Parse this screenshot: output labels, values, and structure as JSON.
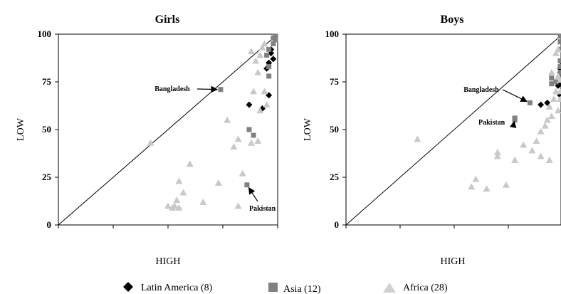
{
  "chart_data": [
    {
      "type": "scatter",
      "title": "Girls",
      "xlabel": "HIGH",
      "ylabel": "LOW",
      "xlim": [
        0,
        100
      ],
      "ylim": [
        0,
        100
      ],
      "yticks": [
        "0",
        "25",
        "50",
        "75",
        "100"
      ],
      "diagonal": true,
      "series": [
        {
          "name": "Latin America (8)",
          "marker": "diamond",
          "color": "#000000",
          "points": [
            [
              97,
              90
            ],
            [
              97,
              92
            ],
            [
              98,
              87
            ],
            [
              95,
              82
            ],
            [
              96,
              85
            ],
            [
              96,
              68
            ],
            [
              87,
              63
            ],
            [
              93,
              61
            ]
          ]
        },
        {
          "name": "Asia (12)",
          "marker": "square",
          "color": "#808080",
          "points": [
            [
              99,
              99
            ],
            [
              98,
              98
            ],
            [
              99,
              97
            ],
            [
              98,
              95
            ],
            [
              96,
              92
            ],
            [
              95,
              89
            ],
            [
              96,
              83
            ],
            [
              96,
              78
            ],
            [
              74,
              71
            ],
            [
              87,
              50
            ],
            [
              89,
              47
            ],
            [
              86,
              21
            ]
          ]
        },
        {
          "name": "Africa (28)",
          "marker": "triangle",
          "color": "#c8c8c8",
          "points": [
            [
              42,
              43
            ],
            [
              88,
              91
            ],
            [
              92,
              89
            ],
            [
              90,
              86
            ],
            [
              91,
              80
            ],
            [
              89,
              70
            ],
            [
              94,
              70
            ],
            [
              92,
              60
            ],
            [
              95,
              63
            ],
            [
              77,
              55
            ],
            [
              82,
              45
            ],
            [
              80,
              41
            ],
            [
              91,
              44
            ],
            [
              88,
              43
            ],
            [
              84,
              27
            ],
            [
              73,
              22
            ],
            [
              55,
              23
            ],
            [
              57,
              17
            ],
            [
              60,
              32
            ],
            [
              50,
              10
            ],
            [
              53,
              10
            ],
            [
              54,
              13
            ],
            [
              52,
              9
            ],
            [
              55,
              9
            ],
            [
              66,
              12
            ],
            [
              82,
              10
            ],
            [
              94,
              95
            ],
            [
              93,
              93
            ]
          ]
        }
      ],
      "annotations": [
        {
          "text": "Bangladesh",
          "point": [
            74,
            71
          ]
        },
        {
          "text": "Pakistan",
          "point": [
            86,
            21
          ]
        }
      ]
    },
    {
      "type": "scatter",
      "title": "Boys",
      "xlabel": "HIGH",
      "ylabel": "LOW",
      "xlim": [
        0,
        100
      ],
      "ylim": [
        0,
        100
      ],
      "yticks": [
        "0",
        "25",
        "50",
        "75",
        "100"
      ],
      "diagonal": true,
      "series": [
        {
          "name": "Latin America (8)",
          "marker": "diamond",
          "color": "#000000",
          "points": [
            [
              99,
              80
            ],
            [
              99,
              82
            ],
            [
              98,
              73
            ],
            [
              90,
              63
            ],
            [
              93,
              64
            ],
            [
              99,
              68
            ],
            [
              99,
              75
            ],
            [
              100,
              85
            ]
          ]
        },
        {
          "name": "Asia (12)",
          "marker": "square",
          "color": "#808080",
          "points": [
            [
              99,
              99
            ],
            [
              99,
              96
            ],
            [
              99,
              92
            ],
            [
              99,
              86
            ],
            [
              99,
              83
            ],
            [
              99,
              80
            ],
            [
              95,
              77
            ],
            [
              95,
              74
            ],
            [
              97,
              75
            ],
            [
              85,
              64
            ],
            [
              78,
              56
            ],
            [
              78,
              55
            ]
          ]
        },
        {
          "name": "Africa (28)",
          "marker": "triangle",
          "color": "#c8c8c8",
          "points": [
            [
              33,
              45
            ],
            [
              97,
              90
            ],
            [
              98,
              92
            ],
            [
              95,
              80
            ],
            [
              98,
              78
            ],
            [
              99,
              76
            ],
            [
              97,
              70
            ],
            [
              99,
              70
            ],
            [
              99,
              66
            ],
            [
              94,
              62
            ],
            [
              95,
              57
            ],
            [
              93,
              55
            ],
            [
              90,
              49
            ],
            [
              92,
              52
            ],
            [
              88,
              44
            ],
            [
              82,
              42
            ],
            [
              86,
              39
            ],
            [
              90,
              36
            ],
            [
              70,
              38
            ],
            [
              70,
              36
            ],
            [
              60,
              24
            ],
            [
              58,
              20
            ],
            [
              65,
              19
            ],
            [
              74,
              21
            ],
            [
              78,
              34
            ],
            [
              94,
              34
            ],
            [
              98,
              60
            ],
            [
              96,
              66
            ]
          ]
        }
      ],
      "annotations": [
        {
          "text": "Bangladesh",
          "point": [
            85,
            64
          ]
        },
        {
          "text": "Pakistan",
          "point": [
            78,
            56
          ]
        }
      ]
    }
  ],
  "legend": [
    {
      "label": "Latin America (8)",
      "marker": "diamond",
      "color": "#000000"
    },
    {
      "label": "Asia (12)",
      "marker": "square",
      "color": "#808080"
    },
    {
      "label": "Africa (28)",
      "marker": "triangle",
      "color": "#c8c8c8"
    }
  ]
}
